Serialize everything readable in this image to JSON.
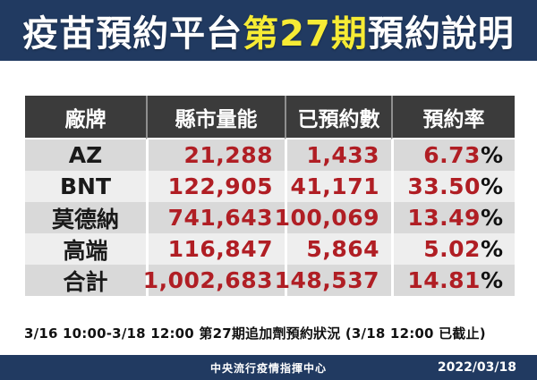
{
  "title": {
    "part1": "疫苗預約平台",
    "highlight": "第27期",
    "part2": "預約說明"
  },
  "table": {
    "headers": [
      "廠牌",
      "縣市量能",
      "已預約數",
      "預約率"
    ],
    "percent_suffix": "%",
    "rows": [
      {
        "brand": "AZ",
        "capacity": "21,288",
        "reserved": "1,433",
        "rate": "6.73"
      },
      {
        "brand": "BNT",
        "capacity": "122,905",
        "reserved": "41,171",
        "rate": "33.50"
      },
      {
        "brand": "莫德納",
        "capacity": "741,643",
        "reserved": "100,069",
        "rate": "13.49"
      },
      {
        "brand": "高端",
        "capacity": "116,847",
        "reserved": "5,864",
        "rate": "5.02"
      },
      {
        "brand": "合計",
        "capacity": "1,002,683",
        "reserved": "148,537",
        "rate": "14.81"
      }
    ]
  },
  "footnote": "3/16 10:00-3/18 12:00 第27期追加劑預約狀況 (3/18 12:00 已截止)",
  "footer": {
    "organization": "中央流行疫情指揮中心",
    "date": "2022/03/18"
  },
  "colors": {
    "navy_bar": "#213a61",
    "title_highlight_yellow": "#f6eb35",
    "header_charcoal": "#3b3b3b",
    "number_red": "#b01e24",
    "row_gray_dark": "#d9d9d9",
    "row_gray_light": "#eeeeee"
  }
}
